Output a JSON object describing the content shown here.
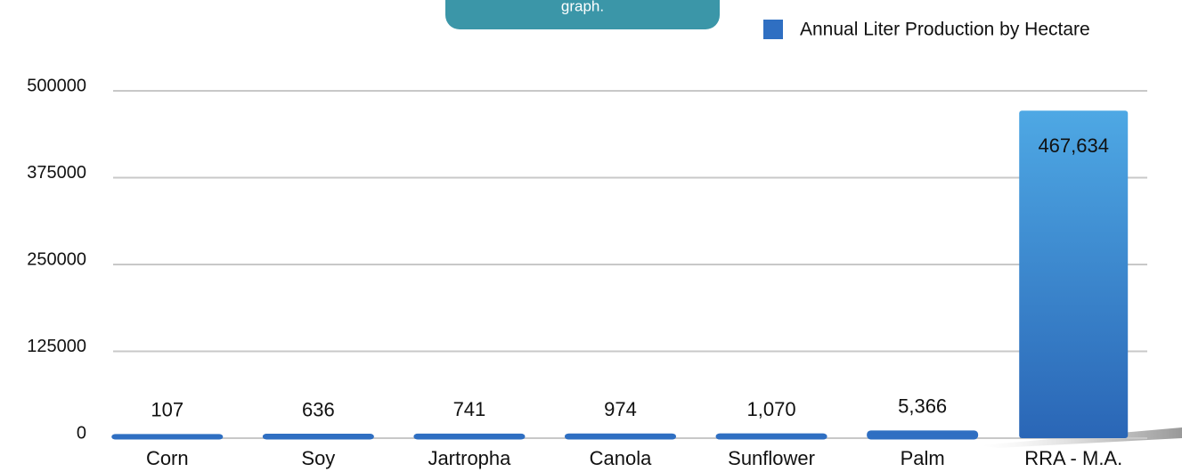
{
  "chart_data": {
    "type": "bar",
    "annotation": "graph.",
    "categories": [
      "Corn",
      "Soy",
      "Jartropha",
      "Canola",
      "Sunflower",
      "Palm",
      "RRA - M.A."
    ],
    "series": [
      {
        "name": "Annual Liter Production by Hectare",
        "color": "#2f6fc2",
        "values": [
          107,
          636,
          741,
          974,
          1070,
          5366,
          467634
        ],
        "value_labels": [
          "107",
          "636",
          "741",
          "974",
          "1,070",
          "5,366",
          "467,634"
        ]
      }
    ],
    "ylim": [
      0,
      500000
    ],
    "yticks": [
      0,
      125000,
      250000,
      375000,
      500000
    ],
    "grid": true,
    "legend": "top-right"
  }
}
